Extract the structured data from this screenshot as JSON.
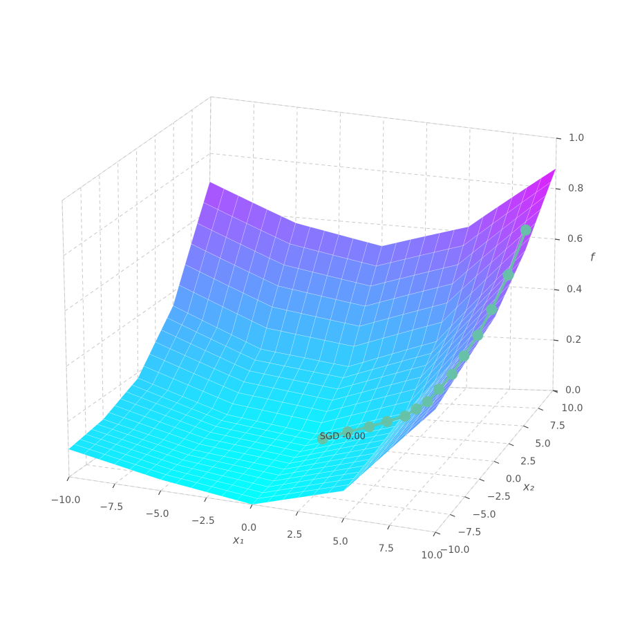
{
  "chart_data": {
    "type": "surface3d",
    "colormap": "cool",
    "xlabel": "x₁",
    "ylabel": "x₂",
    "zlabel": "f",
    "xlim": [
      -10,
      10
    ],
    "ylim": [
      -10,
      10
    ],
    "zlim": [
      0,
      1
    ],
    "xticks": [
      {
        "value": -10,
        "label": "−10.0"
      },
      {
        "value": -7.5,
        "label": "−7.5"
      },
      {
        "value": -5,
        "label": "−5.0"
      },
      {
        "value": -2.5,
        "label": "−2.5"
      },
      {
        "value": 0,
        "label": "0.0"
      },
      {
        "value": 2.5,
        "label": "2.5"
      },
      {
        "value": 5,
        "label": "5.0"
      },
      {
        "value": 7.5,
        "label": "7.5"
      },
      {
        "value": 10,
        "label": "10.0"
      }
    ],
    "yticks": [
      {
        "value": -10,
        "label": "−10.0"
      },
      {
        "value": -7.5,
        "label": "−7.5"
      },
      {
        "value": -5,
        "label": "−5.0"
      },
      {
        "value": -2.5,
        "label": "−2.5"
      },
      {
        "value": 0,
        "label": "0.0"
      },
      {
        "value": 2.5,
        "label": "2.5"
      },
      {
        "value": 5,
        "label": "5.0"
      },
      {
        "value": 7.5,
        "label": "7.5"
      },
      {
        "value": 10,
        "label": "10.0"
      }
    ],
    "zticks": [
      {
        "value": 0,
        "label": "0.0"
      },
      {
        "value": 0.2,
        "label": "0.2"
      },
      {
        "value": 0.4,
        "label": "0.4"
      },
      {
        "value": 0.6,
        "label": "0.6"
      },
      {
        "value": 0.8,
        "label": "0.8"
      },
      {
        "value": 1,
        "label": "1.0"
      }
    ],
    "grid": true,
    "surface": {
      "x": [
        -10,
        -5,
        0,
        5,
        10
      ],
      "y": [
        -10,
        -5,
        0,
        5,
        10
      ],
      "z": [
        [
          0.1,
          0.04,
          0.0,
          0.1,
          0.45
        ],
        [
          0.12,
          0.05,
          0.02,
          0.12,
          0.5
        ],
        [
          0.18,
          0.08,
          0.04,
          0.15,
          0.55
        ],
        [
          0.35,
          0.22,
          0.18,
          0.3,
          0.68
        ],
        [
          0.7,
          0.58,
          0.52,
          0.62,
          0.88
        ]
      ]
    },
    "path": {
      "color": "#66c2a5",
      "x": [
        9,
        8.3,
        7.6,
        7.0,
        6.4,
        5.9,
        5.3,
        4.8,
        4.3,
        3.8,
        3.0,
        2.2,
        1.2,
        0
      ],
      "y": [
        8,
        7.2,
        6.5,
        6.0,
        5.5,
        5.0,
        4.6,
        4.2,
        3.8,
        3.4,
        2.8,
        2.2,
        1.6,
        1.0
      ],
      "z": [
        0.68,
        0.52,
        0.4,
        0.31,
        0.24,
        0.18,
        0.13,
        0.09,
        0.07,
        0.05,
        0.04,
        0.03,
        0.02,
        0.0
      ],
      "annotation": "SGD -0.00"
    }
  }
}
